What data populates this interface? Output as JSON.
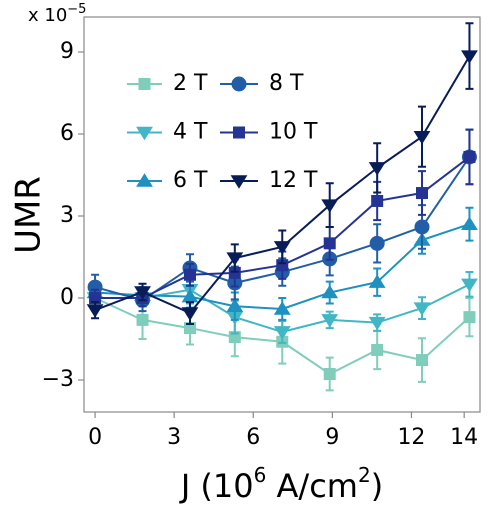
{
  "chart_data": {
    "type": "line",
    "ylabel": "UMR",
    "y_multiplier": {
      "base": "x 10",
      "exponent": "−5"
    },
    "xlabel": [
      "J (10",
      "6",
      " A/cm",
      "2",
      ")"
    ],
    "x": [
      0,
      1.8,
      3.6,
      5.3,
      7.1,
      8.9,
      10.7,
      12.4,
      14.2
    ],
    "xlim": [
      -0.42,
      14.6
    ],
    "xticks": [
      0,
      3,
      6,
      9,
      12,
      14
    ],
    "ylim": [
      -4.17,
      10.28
    ],
    "yticks": [
      {
        "value": -3,
        "label": "−3"
      },
      0,
      3,
      6,
      9
    ],
    "legend": "upper left",
    "series": [
      {
        "name": "2 T",
        "color": "#7fcdbb",
        "marker": "square",
        "values": [
          0,
          -0.8,
          -1.1,
          -1.43,
          -1.6,
          -2.78,
          -1.9,
          -2.27,
          -0.7
        ],
        "errors": [
          0.1,
          0.7,
          0.6,
          0.7,
          0.8,
          0.6,
          0.7,
          0.8,
          0.7
        ]
      },
      {
        "name": "4 T",
        "color": "#41b6c4",
        "marker": "triangle-down",
        "values": [
          0,
          0,
          0.3,
          -0.7,
          -1.24,
          -0.8,
          -0.9,
          -0.37,
          0.5
        ],
        "errors": [
          0.1,
          0.3,
          0.5,
          0.6,
          0.4,
          0.3,
          0.3,
          0.4,
          0.45
        ]
      },
      {
        "name": "6 T",
        "color": "#1d91c0",
        "marker": "triangle-up",
        "values": [
          0.2,
          0.1,
          0.05,
          -0.3,
          -0.4,
          0.2,
          0.58,
          2.12,
          2.7
        ],
        "errors": [
          0.1,
          0.3,
          0.4,
          0.5,
          0.4,
          0.4,
          0.5,
          0.5,
          0.6
        ]
      },
      {
        "name": "8 T",
        "color": "#225ea8",
        "marker": "circle",
        "values": [
          0.4,
          -0.08,
          1.1,
          0.55,
          0.95,
          1.43,
          2.0,
          2.6,
          5.16
        ],
        "errors": [
          0.45,
          0.4,
          0.5,
          0.6,
          0.5,
          0.6,
          0.7,
          0.8,
          1.0
        ]
      },
      {
        "name": "10 T",
        "color": "#253494",
        "marker": "square",
        "values": [
          0,
          0,
          0.85,
          0.92,
          1.2,
          2.0,
          3.55,
          3.84,
          5.16
        ],
        "errors": [
          0.3,
          0.3,
          0.4,
          0.5,
          0.5,
          0.6,
          0.7,
          0.8,
          1.0
        ]
      },
      {
        "name": "12 T",
        "color": "#081d58",
        "marker": "triangle-down",
        "values": [
          -0.44,
          0.22,
          -0.55,
          1.46,
          1.87,
          3.4,
          4.76,
          5.9,
          8.85
        ],
        "errors": [
          0.3,
          0.3,
          0.4,
          0.5,
          0.6,
          0.8,
          0.9,
          1.1,
          1.2
        ]
      }
    ]
  }
}
